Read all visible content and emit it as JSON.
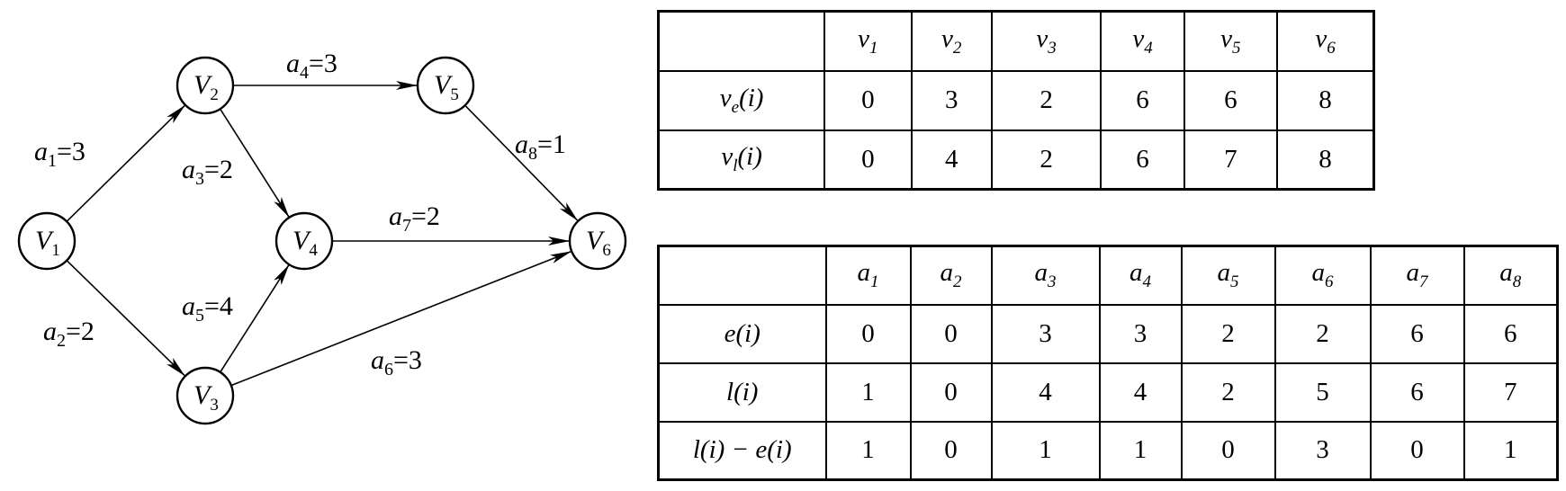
{
  "graph": {
    "nodes": [
      {
        "id": "v1",
        "letter": "V",
        "sub": "1"
      },
      {
        "id": "v2",
        "letter": "V",
        "sub": "2"
      },
      {
        "id": "v3",
        "letter": "V",
        "sub": "3"
      },
      {
        "id": "v4",
        "letter": "V",
        "sub": "4"
      },
      {
        "id": "v5",
        "letter": "V",
        "sub": "5"
      },
      {
        "id": "v6",
        "letter": "V",
        "sub": "6"
      }
    ],
    "edges": [
      {
        "id": "a1",
        "from": "v1",
        "to": "v2",
        "name": "a",
        "sub": "1",
        "weight": "3"
      },
      {
        "id": "a2",
        "from": "v1",
        "to": "v3",
        "name": "a",
        "sub": "2",
        "weight": "2"
      },
      {
        "id": "a3",
        "from": "v2",
        "to": "v4",
        "name": "a",
        "sub": "3",
        "weight": "2"
      },
      {
        "id": "a4",
        "from": "v2",
        "to": "v5",
        "name": "a",
        "sub": "4",
        "weight": "3"
      },
      {
        "id": "a5",
        "from": "v3",
        "to": "v4",
        "name": "a",
        "sub": "5",
        "weight": "4"
      },
      {
        "id": "a6",
        "from": "v3",
        "to": "v6",
        "name": "a",
        "sub": "6",
        "weight": "3"
      },
      {
        "id": "a7",
        "from": "v4",
        "to": "v6",
        "name": "a",
        "sub": "7",
        "weight": "2"
      },
      {
        "id": "a8",
        "from": "v5",
        "to": "v6",
        "name": "a",
        "sub": "8",
        "weight": "1"
      }
    ]
  },
  "vertex_table": {
    "headers": [
      {
        "letter": "v",
        "sub": "1"
      },
      {
        "letter": "v",
        "sub": "2"
      },
      {
        "letter": "v",
        "sub": "3"
      },
      {
        "letter": "v",
        "sub": "4"
      },
      {
        "letter": "v",
        "sub": "5"
      },
      {
        "letter": "v",
        "sub": "6"
      }
    ],
    "rows": [
      {
        "label_letter": "v",
        "label_sub": "e",
        "label_arg": "(i)",
        "values": [
          "0",
          "3",
          "2",
          "6",
          "6",
          "8"
        ]
      },
      {
        "label_letter": "v",
        "label_sub": "l",
        "label_arg": "(i)",
        "values": [
          "0",
          "4",
          "2",
          "6",
          "7",
          "8"
        ]
      }
    ]
  },
  "activity_table": {
    "headers": [
      {
        "letter": "a",
        "sub": "1"
      },
      {
        "letter": "a",
        "sub": "2"
      },
      {
        "letter": "a",
        "sub": "3"
      },
      {
        "letter": "a",
        "sub": "4"
      },
      {
        "letter": "a",
        "sub": "5"
      },
      {
        "letter": "a",
        "sub": "6"
      },
      {
        "letter": "a",
        "sub": "7"
      },
      {
        "letter": "a",
        "sub": "8"
      }
    ],
    "rows": [
      {
        "label": "e(i)",
        "values": [
          "0",
          "0",
          "3",
          "3",
          "2",
          "2",
          "6",
          "6"
        ]
      },
      {
        "label": "l(i)",
        "values": [
          "1",
          "0",
          "4",
          "4",
          "2",
          "5",
          "6",
          "7"
        ]
      },
      {
        "label": "l(i) − e(i)",
        "values": [
          "1",
          "0",
          "1",
          "1",
          "0",
          "3",
          "0",
          "1"
        ]
      }
    ]
  }
}
